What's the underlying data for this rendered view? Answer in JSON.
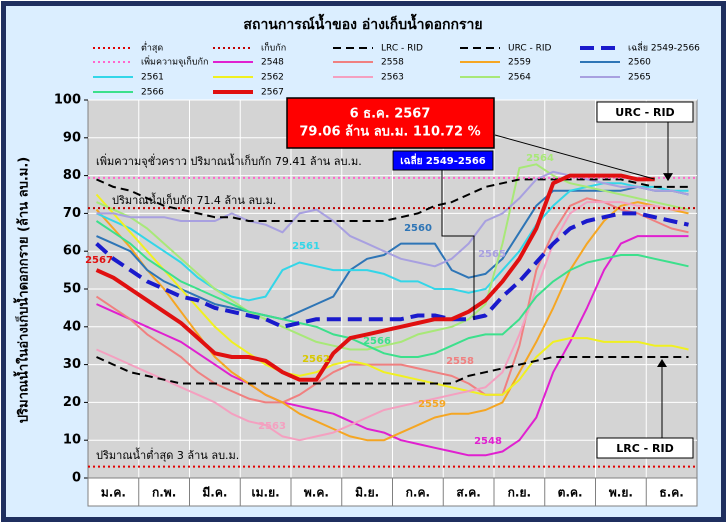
{
  "chart_data": {
    "type": "line",
    "title": "สถานการณ์น้ำของ อ่างเก็บน้ำดอกกราย",
    "y_label": "ปริมาณน้ำในอ่างเก็บน้ำดอกกราย (ล้าน ลบ.ม.)",
    "categories": [
      null,
      "ม.ค.",
      null,
      null,
      "ก.พ.",
      null,
      null,
      "มี.ค.",
      null,
      null,
      "เม.ย.",
      null,
      null,
      "พ.ค.",
      null,
      null,
      "มิ.ย.",
      null,
      null,
      "ก.ค.",
      null,
      null,
      "ส.ค.",
      null,
      null,
      "ก.ย.",
      null,
      null,
      "ต.ค.",
      null,
      null,
      "พ.ย.",
      null,
      null,
      "ธ.ค.",
      null
    ],
    "ylim": [
      0,
      100
    ],
    "yticks": [
      0,
      10,
      20,
      30,
      40,
      50,
      60,
      70,
      80,
      90,
      100
    ],
    "grid": true,
    "series": [
      {
        "name": "ต่ำสุด",
        "color": "#e00000",
        "dash": "dotted",
        "value": 3
      },
      {
        "name": "เก็บกัก",
        "color": "#c00000",
        "dash": "dotted",
        "value": 71.4
      },
      {
        "name": "LRC - RID",
        "color": "#000000",
        "dash": "dashed",
        "values": [
          32,
          30,
          28,
          27,
          26,
          25,
          25,
          25,
          25,
          25,
          25,
          25,
          25,
          25,
          25,
          25,
          25,
          25,
          25,
          25,
          25,
          25,
          27,
          28,
          29,
          30,
          31,
          32,
          32,
          32,
          32,
          32,
          32,
          32,
          32,
          32
        ]
      },
      {
        "name": "URC - RID",
        "color": "#000000",
        "dash": "dashed",
        "values": [
          79,
          77,
          76,
          74,
          72,
          71,
          70,
          69,
          69,
          68,
          68,
          68,
          68,
          68,
          68,
          68,
          68,
          68,
          69,
          70,
          72,
          73,
          75,
          77,
          78,
          79,
          79,
          79,
          79,
          79,
          79,
          79,
          78,
          77,
          77,
          77
        ]
      },
      {
        "name": "เฉลี่ย 2549-2566",
        "color": "#1a1acc",
        "dash": "bigdash",
        "values": [
          62,
          58,
          55,
          52,
          50,
          48,
          47,
          45,
          44,
          43,
          42,
          40,
          41,
          42,
          42,
          42,
          42,
          42,
          42,
          43,
          43,
          42,
          42,
          43,
          48,
          52,
          57,
          62,
          66,
          68,
          69,
          70,
          70,
          69,
          68,
          67
        ]
      },
      {
        "name": "เพิ่มความจุเก็บกัก",
        "color": "#ff66cc",
        "dash": "dotted",
        "value": 79.41
      },
      {
        "name": "2548",
        "color": "#e020d0",
        "values": [
          46,
          44,
          42,
          40,
          38,
          36,
          33,
          30,
          27,
          25,
          22,
          20,
          19,
          18,
          17,
          15,
          13,
          12,
          10,
          9,
          8,
          7,
          6,
          6,
          7,
          10,
          16,
          28,
          36,
          45,
          55,
          62,
          64,
          64,
          64,
          64
        ]
      },
      {
        "name": "2558",
        "color": "#f08080",
        "values": [
          48,
          45,
          42,
          38,
          35,
          32,
          28,
          25,
          23,
          21,
          20,
          20,
          22,
          25,
          28,
          30,
          30,
          30,
          30,
          29,
          28,
          27,
          25,
          22,
          22,
          35,
          55,
          65,
          72,
          74,
          73,
          71,
          70,
          68,
          66,
          65
        ]
      },
      {
        "name": "2559",
        "color": "#f5a623",
        "values": [
          71,
          66,
          61,
          55,
          50,
          44,
          38,
          32,
          28,
          25,
          22,
          20,
          17,
          15,
          13,
          11,
          10,
          10,
          12,
          14,
          16,
          17,
          17,
          18,
          20,
          28,
          36,
          45,
          55,
          62,
          68,
          72,
          73,
          72,
          71,
          70
        ]
      },
      {
        "name": "2560",
        "color": "#2e75b6",
        "values": [
          64,
          62,
          60,
          55,
          52,
          50,
          48,
          46,
          45,
          44,
          43,
          42,
          44,
          46,
          48,
          55,
          58,
          59,
          62,
          62,
          62,
          55,
          53,
          54,
          58,
          65,
          72,
          76,
          76,
          76,
          76,
          76,
          77,
          76,
          76,
          75
        ]
      },
      {
        "name": "2561",
        "color": "#33d6e8",
        "values": [
          70,
          68,
          66,
          63,
          60,
          57,
          53,
          50,
          48,
          47,
          48,
          55,
          57,
          56,
          55,
          55,
          55,
          54,
          52,
          52,
          50,
          50,
          49,
          50,
          55,
          60,
          67,
          72,
          76,
          77,
          78,
          78,
          77,
          77,
          76,
          76
        ]
      },
      {
        "name": "2562",
        "color": "#f0f020",
        "values": [
          75,
          70,
          65,
          60,
          55,
          50,
          45,
          40,
          36,
          33,
          30,
          28,
          27,
          28,
          30,
          31,
          30,
          28,
          27,
          26,
          25,
          24,
          23,
          22,
          22,
          26,
          32,
          36,
          37,
          37,
          36,
          36,
          36,
          35,
          35,
          34
        ]
      },
      {
        "name": "2563",
        "color": "#f4a0c0",
        "values": [
          34,
          32,
          30,
          28,
          26,
          24,
          22,
          20,
          17,
          15,
          14,
          11,
          10,
          11,
          12,
          14,
          16,
          18,
          19,
          20,
          21,
          22,
          23,
          24,
          28,
          38,
          50,
          62,
          70,
          73,
          73,
          73,
          72,
          72,
          71,
          71
        ]
      },
      {
        "name": "2564",
        "color": "#a8e878",
        "values": [
          73,
          71,
          69,
          66,
          62,
          58,
          54,
          50,
          47,
          44,
          42,
          40,
          38,
          36,
          35,
          34,
          34,
          35,
          36,
          38,
          39,
          40,
          42,
          46,
          62,
          82,
          83,
          80,
          78,
          77,
          76,
          75,
          74,
          73,
          72,
          71
        ]
      },
      {
        "name": "2565",
        "color": "#a8a0e0",
        "values": [
          70,
          70,
          69,
          69,
          69,
          68,
          68,
          68,
          70,
          68,
          67,
          65,
          70,
          71,
          68,
          64,
          62,
          60,
          58,
          57,
          56,
          58,
          62,
          68,
          70,
          74,
          79,
          81,
          80,
          79,
          78,
          77,
          77,
          76,
          76,
          75
        ]
      },
      {
        "name": "2566",
        "color": "#3ce08c",
        "values": [
          68,
          65,
          62,
          58,
          55,
          52,
          50,
          48,
          46,
          44,
          43,
          42,
          41,
          40,
          38,
          37,
          35,
          33,
          32,
          32,
          33,
          35,
          37,
          38,
          38,
          42,
          48,
          52,
          55,
          57,
          58,
          59,
          59,
          58,
          57,
          56
        ]
      },
      {
        "name": "2567",
        "color": "#e01010",
        "width": 4,
        "values": [
          55,
          53,
          50,
          47,
          44,
          41,
          37,
          33,
          32,
          32,
          31,
          28,
          26,
          26,
          33,
          37,
          38,
          39,
          40,
          41,
          42,
          42,
          44,
          47,
          52,
          58,
          66,
          78,
          80,
          80,
          80,
          80,
          79,
          79.06,
          null,
          null
        ]
      }
    ],
    "annotations": {
      "temp_capacity": "เพิ่มความจุชั่วคราว ปริมาณน้ำเก็บกัก 79.41 ล้าน ลบ.ม.",
      "capacity": "ปริมาณน้ำเก็บกัก 71.4 ล้าน ลบ.ม.",
      "minimum": "ปริมาณน้ำต่ำสุด 3 ล้าน ลบ.ม.",
      "callout_date": "6 ธ.ค. 2567",
      "callout_value": "79.06 ล้าน ลบ.ม. 110.72 %"
    }
  }
}
